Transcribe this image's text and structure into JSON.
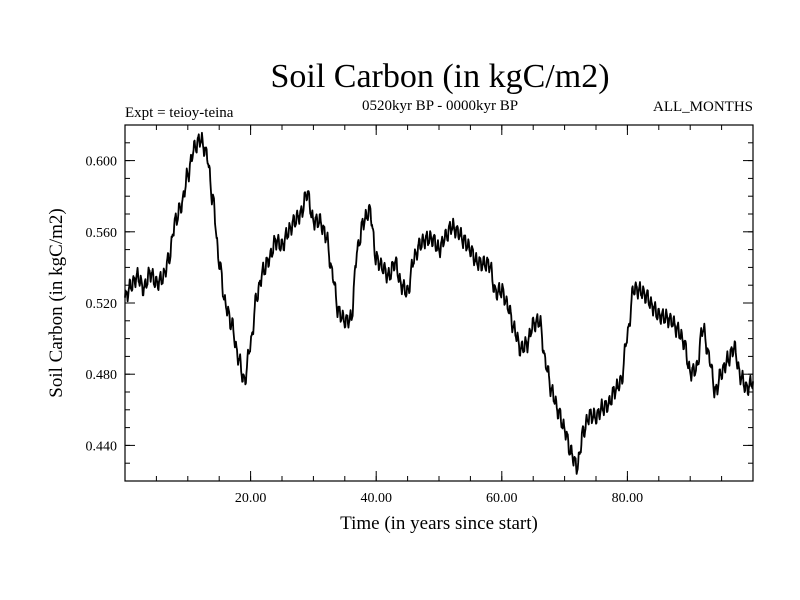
{
  "chart_data": {
    "type": "line",
    "title": "Soil Carbon (in kgC/m2)",
    "subtitle_left": "Expt = teioy-teina",
    "subtitle_center": "0520kyr BP - 0000kyr BP",
    "subtitle_right": "ALL_MONTHS",
    "xlabel": "Time (in years since start)",
    "ylabel": "Soil Carbon (in kgC/m2)",
    "xlim": [
      0,
      100
    ],
    "ylim": [
      0.42,
      0.62
    ],
    "x_ticks": [
      20,
      40,
      60,
      80
    ],
    "x_tick_labels": [
      "20.00",
      "40.00",
      "60.00",
      "80.00"
    ],
    "y_ticks": [
      0.44,
      0.48,
      0.52,
      0.56,
      0.6
    ],
    "y_tick_labels": [
      "0.440",
      "0.480",
      "0.520",
      "0.560",
      "0.600"
    ],
    "x_minor_step": 5,
    "y_minor_step": 0.01,
    "series": [
      {
        "name": "Soil Carbon",
        "color": "#000000",
        "points": [
          [
            0,
            0.523
          ],
          [
            1,
            0.53
          ],
          [
            2,
            0.535
          ],
          [
            3,
            0.528
          ],
          [
            4,
            0.537
          ],
          [
            5,
            0.531
          ],
          [
            6,
            0.534
          ],
          [
            7,
            0.545
          ],
          [
            8,
            0.566
          ],
          [
            9,
            0.575
          ],
          [
            10,
            0.592
          ],
          [
            11,
            0.607
          ],
          [
            12,
            0.612
          ],
          [
            13,
            0.604
          ],
          [
            14,
            0.578
          ],
          [
            15,
            0.543
          ],
          [
            16,
            0.519
          ],
          [
            17,
            0.508
          ],
          [
            18,
            0.49
          ],
          [
            19,
            0.476
          ],
          [
            20,
            0.497
          ],
          [
            21,
            0.524
          ],
          [
            22,
            0.538
          ],
          [
            23,
            0.545
          ],
          [
            24,
            0.555
          ],
          [
            25,
            0.552
          ],
          [
            26,
            0.56
          ],
          [
            27,
            0.566
          ],
          [
            28,
            0.57
          ],
          [
            29,
            0.582
          ],
          [
            30,
            0.566
          ],
          [
            31,
            0.566
          ],
          [
            32,
            0.558
          ],
          [
            33,
            0.537
          ],
          [
            34,
            0.515
          ],
          [
            35,
            0.51
          ],
          [
            36,
            0.511
          ],
          [
            37,
            0.55
          ],
          [
            38,
            0.566
          ],
          [
            39,
            0.572
          ],
          [
            40,
            0.545
          ],
          [
            41,
            0.54
          ],
          [
            42,
            0.535
          ],
          [
            43,
            0.543
          ],
          [
            44,
            0.53
          ],
          [
            45,
            0.526
          ],
          [
            46,
            0.545
          ],
          [
            47,
            0.553
          ],
          [
            48,
            0.556
          ],
          [
            49,
            0.556
          ],
          [
            50,
            0.55
          ],
          [
            51,
            0.557
          ],
          [
            52,
            0.563
          ],
          [
            53,
            0.56
          ],
          [
            54,
            0.555
          ],
          [
            55,
            0.55
          ],
          [
            56,
            0.543
          ],
          [
            57,
            0.542
          ],
          [
            58,
            0.542
          ],
          [
            59,
            0.526
          ],
          [
            60,
            0.527
          ],
          [
            61,
            0.518
          ],
          [
            62,
            0.505
          ],
          [
            63,
            0.494
          ],
          [
            64,
            0.497
          ],
          [
            65,
            0.508
          ],
          [
            66,
            0.51
          ],
          [
            67,
            0.486
          ],
          [
            68,
            0.47
          ],
          [
            69,
            0.459
          ],
          [
            70,
            0.449
          ],
          [
            71,
            0.436
          ],
          [
            72,
            0.428
          ],
          [
            73,
            0.448
          ],
          [
            74,
            0.457
          ],
          [
            75,
            0.456
          ],
          [
            76,
            0.461
          ],
          [
            77,
            0.463
          ],
          [
            78,
            0.471
          ],
          [
            79,
            0.476
          ],
          [
            80,
            0.502
          ],
          [
            81,
            0.528
          ],
          [
            82,
            0.527
          ],
          [
            83,
            0.524
          ],
          [
            84,
            0.518
          ],
          [
            85,
            0.513
          ],
          [
            86,
            0.512
          ],
          [
            87,
            0.51
          ],
          [
            88,
            0.505
          ],
          [
            89,
            0.498
          ],
          [
            90,
            0.481
          ],
          [
            91,
            0.483
          ],
          [
            92,
            0.506
          ],
          [
            93,
            0.49
          ],
          [
            94,
            0.47
          ],
          [
            95,
            0.481
          ],
          [
            96,
            0.488
          ],
          [
            97,
            0.495
          ],
          [
            98,
            0.479
          ],
          [
            99,
            0.472
          ],
          [
            100,
            0.476
          ]
        ]
      }
    ]
  }
}
